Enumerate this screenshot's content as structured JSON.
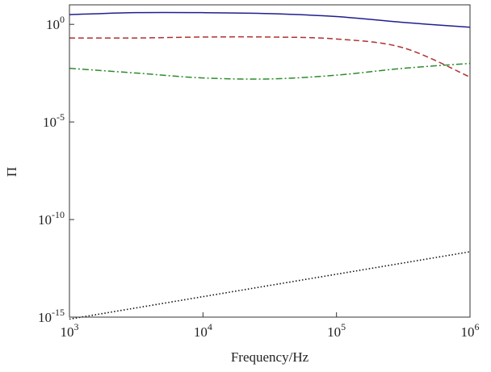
{
  "chart_data": {
    "type": "line",
    "xlabel": "Frequency/Hz",
    "ylabel": "Π",
    "xscale": "log",
    "yscale": "log",
    "xlim": [
      1000,
      1000000
    ],
    "ylim": [
      1e-15,
      10
    ],
    "x_ticks": [
      {
        "value": 1000,
        "base": "10",
        "exp": "3"
      },
      {
        "value": 10000,
        "base": "10",
        "exp": "4"
      },
      {
        "value": 100000,
        "base": "10",
        "exp": "5"
      },
      {
        "value": 1000000,
        "base": "10",
        "exp": "6"
      }
    ],
    "y_ticks": [
      {
        "value": 1,
        "base": "10",
        "exp": "0"
      },
      {
        "value": 1e-05,
        "base": "10",
        "exp": "-5"
      },
      {
        "value": 1e-10,
        "base": "10",
        "exp": "-10"
      },
      {
        "value": 1e-15,
        "base": "10",
        "exp": "-15"
      }
    ],
    "grid": false,
    "series": [
      {
        "color": "#1f1f8f",
        "style": "solid",
        "x": [
          1000,
          3162,
          10000,
          31623,
          100000,
          316228,
          1000000
        ],
        "y": [
          3.16,
          3.98,
          3.98,
          3.55,
          2.51,
          1.26,
          0.708
        ]
      },
      {
        "color": "#b03030",
        "style": "dashed",
        "x": [
          1000,
          3162,
          10000,
          31623,
          100000,
          316228,
          1000000
        ],
        "y": [
          0.2,
          0.2,
          0.224,
          0.224,
          0.178,
          0.063,
          0.002
        ]
      },
      {
        "color": "#2e8b2e",
        "style": "dashdot",
        "x": [
          1000,
          3162,
          10000,
          31623,
          100000,
          316228,
          1000000
        ],
        "y": [
          0.0056,
          0.0032,
          0.0018,
          0.0016,
          0.0025,
          0.0056,
          0.01
        ]
      },
      {
        "color": "#111111",
        "style": "dotted",
        "x": [
          1000,
          10000,
          100000,
          1000000
        ],
        "y": [
          7.9e-16,
          1.12e-14,
          1.58e-13,
          2.24e-12
        ]
      }
    ]
  }
}
